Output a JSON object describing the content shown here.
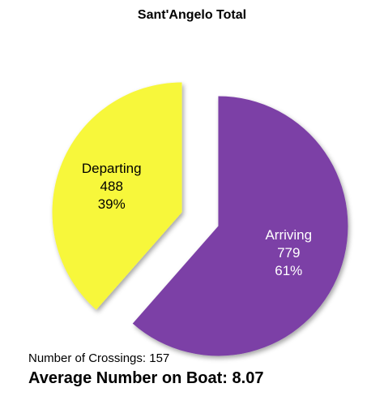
{
  "chart_data": {
    "type": "pie",
    "title": "Sant'Angelo Total",
    "slices": [
      {
        "name": "Arriving",
        "value": 779,
        "percent": "61%",
        "color": "#7b3fa6",
        "exploded": true
      },
      {
        "name": "Departing",
        "value": 488,
        "percent": "39%",
        "color": "#f7f73a",
        "exploded": true
      }
    ],
    "start_angle": "12 o'clock, clockwise",
    "legend": "none (labels inside slices)"
  },
  "footer": {
    "crossings_label": "Number of Crossings:",
    "crossings_value": "157",
    "average_label": "Average Number on Boat:",
    "average_value": "8.07"
  }
}
